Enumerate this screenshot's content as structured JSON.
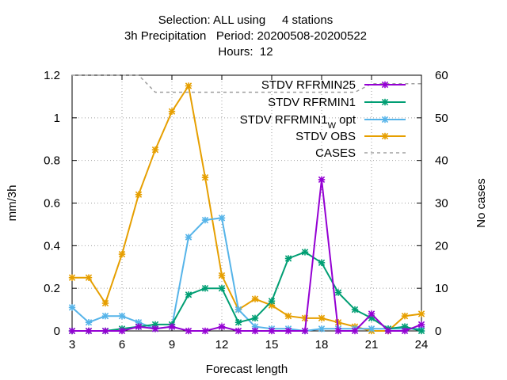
{
  "title": {
    "line1": "Selection: ALL using     4 stations",
    "line2": "3h Precipitation   Period: 20200508-20200522",
    "line3": "Hours:  12"
  },
  "chart_data": {
    "type": "line",
    "xlabel": "Forecast length",
    "ylabel": "mm/3h",
    "y2label": "No cases",
    "xlim": [
      3,
      24
    ],
    "ylim": [
      0,
      1.2
    ],
    "y2lim": [
      0,
      60
    ],
    "xticks": [
      "3",
      "6",
      "9",
      "12",
      "15",
      "18",
      "21",
      "24"
    ],
    "yticks": [
      "0",
      "0.2",
      "0.4",
      "0.6",
      "0.8",
      "1",
      "1.2"
    ],
    "y2ticks": [
      "0",
      "10",
      "20",
      "30",
      "40",
      "50",
      "60"
    ],
    "grid": true,
    "legend_position": "top-right",
    "x": [
      3,
      4,
      5,
      6,
      7,
      8,
      9,
      10,
      11,
      12,
      13,
      14,
      15,
      16,
      17,
      18,
      19,
      20,
      21,
      22,
      23,
      24
    ],
    "series": [
      {
        "name": "STDV RFRMIN25",
        "sub": "",
        "suffix": "",
        "color": "#9400d3",
        "axis": "left",
        "style": "solid",
        "values": [
          0.0,
          0.0,
          0.0,
          0.0,
          0.02,
          0.01,
          0.02,
          0.0,
          0.0,
          0.02,
          0.0,
          0.0,
          0.0,
          0.0,
          0.0,
          0.71,
          0.0,
          0.0,
          0.08,
          0.0,
          0.0,
          0.03
        ]
      },
      {
        "name": "STDV RFRMIN1",
        "sub": "",
        "suffix": "",
        "color": "#009e73",
        "axis": "left",
        "style": "solid",
        "values": [
          0.0,
          0.0,
          0.0,
          0.01,
          0.02,
          0.03,
          0.03,
          0.17,
          0.2,
          0.2,
          0.04,
          0.06,
          0.14,
          0.34,
          0.37,
          0.32,
          0.18,
          0.1,
          0.06,
          0.01,
          0.02,
          0.0
        ]
      },
      {
        "name": "STDV RFRMIN1",
        "sub": "W",
        "suffix": "opt",
        "color": "#56b4e9",
        "axis": "left",
        "style": "solid",
        "values": [
          0.11,
          0.04,
          0.07,
          0.07,
          0.04,
          0.01,
          0.02,
          0.44,
          0.52,
          0.53,
          0.1,
          0.02,
          0.01,
          0.01,
          0.0,
          0.01,
          0.01,
          0.01,
          0.01,
          0.01,
          0.01,
          0.01
        ]
      },
      {
        "name": "STDV OBS",
        "sub": "",
        "suffix": "",
        "color": "#e69f00",
        "axis": "left",
        "style": "solid",
        "values": [
          0.25,
          0.25,
          0.13,
          0.36,
          0.64,
          0.85,
          1.03,
          1.15,
          0.72,
          0.26,
          0.1,
          0.15,
          0.12,
          0.07,
          0.06,
          0.06,
          0.04,
          0.02,
          0.0,
          0.0,
          0.07,
          0.08
        ]
      },
      {
        "name": "CASES",
        "sub": "",
        "suffix": "",
        "color": "#a0a0a0",
        "axis": "right",
        "style": "dashed",
        "values": [
          60,
          60,
          60,
          60,
          60,
          56,
          56,
          56,
          56,
          56,
          56,
          56,
          56,
          56,
          56,
          56,
          56,
          56,
          58,
          58,
          58,
          58
        ]
      }
    ]
  }
}
